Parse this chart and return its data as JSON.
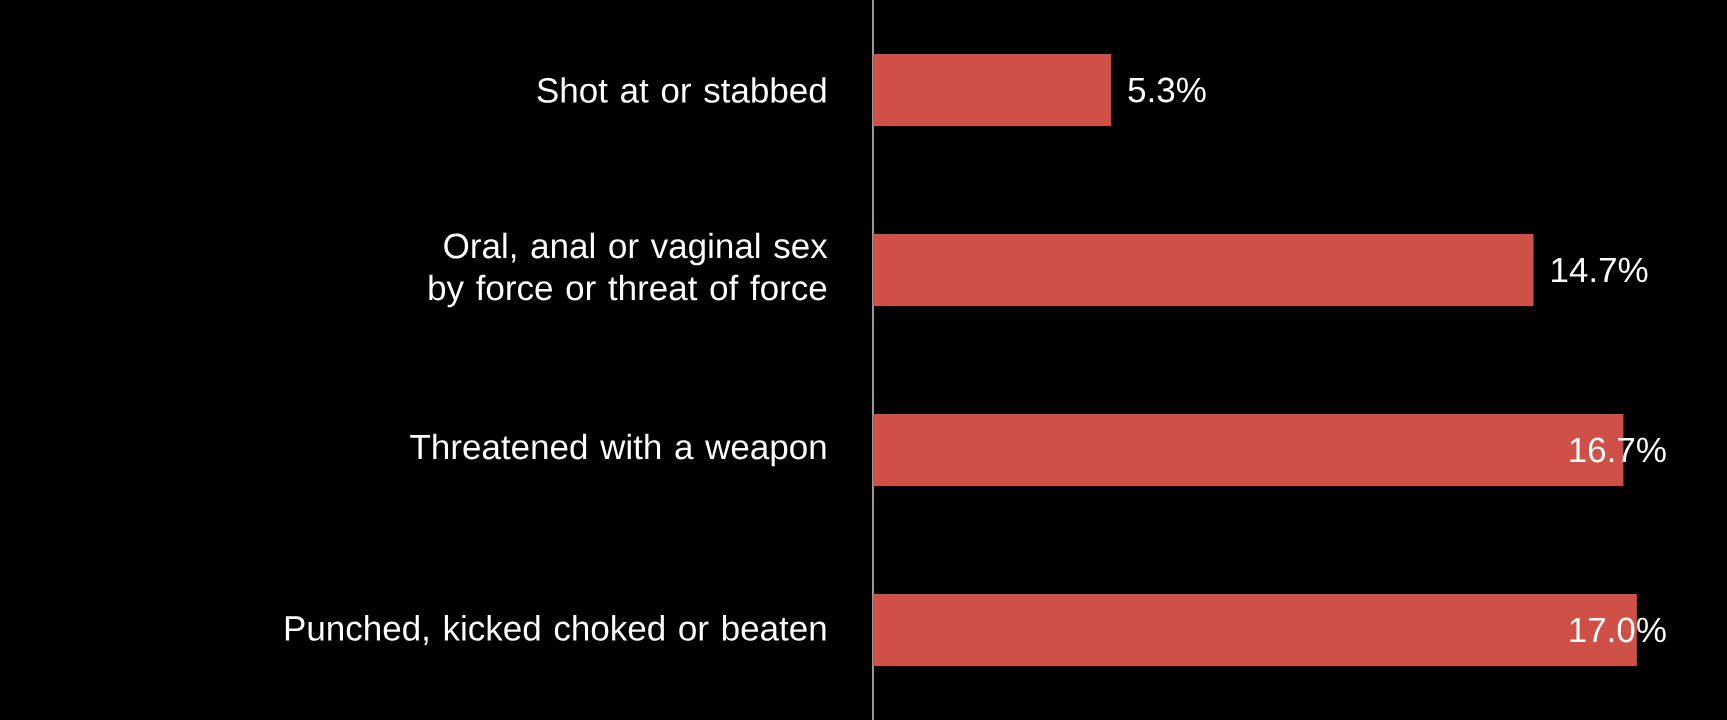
{
  "chart_data": {
    "type": "bar",
    "orientation": "horizontal",
    "categories": [
      "Shot at or stabbed",
      "Oral, anal or vaginal sex by force or threat of force",
      "Threatened with a weapon",
      "Punched, kicked choked or beaten"
    ],
    "values": [
      5.3,
      14.7,
      16.7,
      17.0
    ],
    "value_labels": [
      "5.3%",
      "14.7%",
      "16.7%",
      "17.0%"
    ],
    "color": "#cf5046",
    "tick_labels": "y"
  }
}
